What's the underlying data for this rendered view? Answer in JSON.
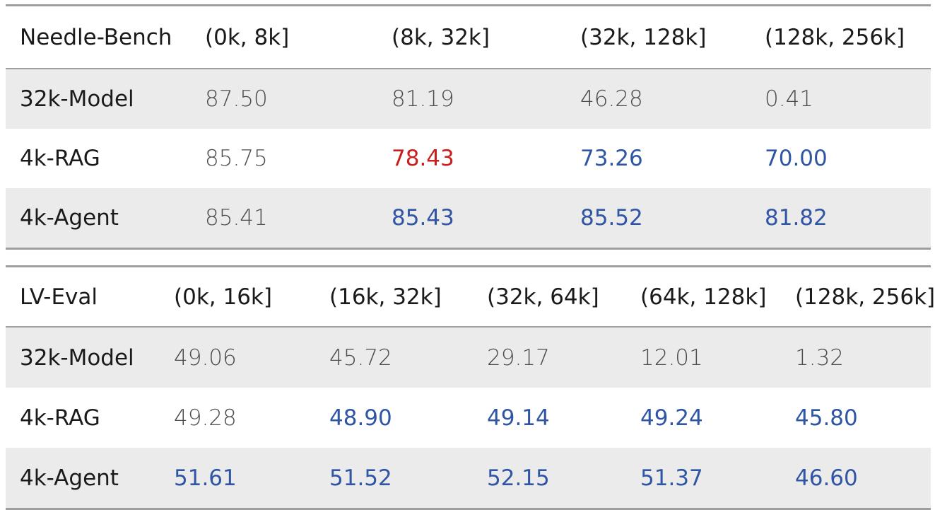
{
  "chart_data": [
    {
      "type": "table",
      "columns": [
        "Needle-Bench",
        "(0k, 8k]",
        "(8k, 32k]",
        "(32k, 128k]",
        "(128k, 256k]"
      ],
      "rows": [
        {
          "label": "32k-Model",
          "values": [
            "87.50",
            "81.19",
            "46.28",
            "0.41"
          ],
          "colors": [
            "plain",
            "plain",
            "plain",
            "plain"
          ]
        },
        {
          "label": "4k-RAG",
          "values": [
            "85.75",
            "78.43",
            "73.26",
            "70.00"
          ],
          "colors": [
            "plain",
            "red",
            "blue",
            "blue"
          ]
        },
        {
          "label": "4k-Agent",
          "values": [
            "85.41",
            "85.43",
            "85.52",
            "81.82"
          ],
          "colors": [
            "plain",
            "blue",
            "blue",
            "blue"
          ]
        }
      ]
    },
    {
      "type": "table",
      "columns": [
        "LV-Eval",
        "(0k, 16k]",
        "(16k, 32k]",
        "(32k, 64k]",
        "(64k, 128k]",
        "(128k, 256k]"
      ],
      "rows": [
        {
          "label": "32k-Model",
          "values": [
            "49.06",
            "45.72",
            "29.17",
            "12.01",
            "1.32"
          ],
          "colors": [
            "plain",
            "plain",
            "plain",
            "plain",
            "plain"
          ]
        },
        {
          "label": "4k-RAG",
          "values": [
            "49.28",
            "48.90",
            "49.14",
            "49.24",
            "45.80"
          ],
          "colors": [
            "plain",
            "blue",
            "blue",
            "blue",
            "blue"
          ]
        },
        {
          "label": "4k-Agent",
          "values": [
            "51.61",
            "51.52",
            "52.15",
            "51.37",
            "46.60"
          ],
          "colors": [
            "blue",
            "blue",
            "blue",
            "blue",
            "blue"
          ]
        }
      ]
    }
  ],
  "colors": {
    "plain": "#4d4d4d",
    "blue": "#2f55a4",
    "red": "#c81e1e",
    "shade": "#ebebeb",
    "rule": "#9e9e9e"
  }
}
